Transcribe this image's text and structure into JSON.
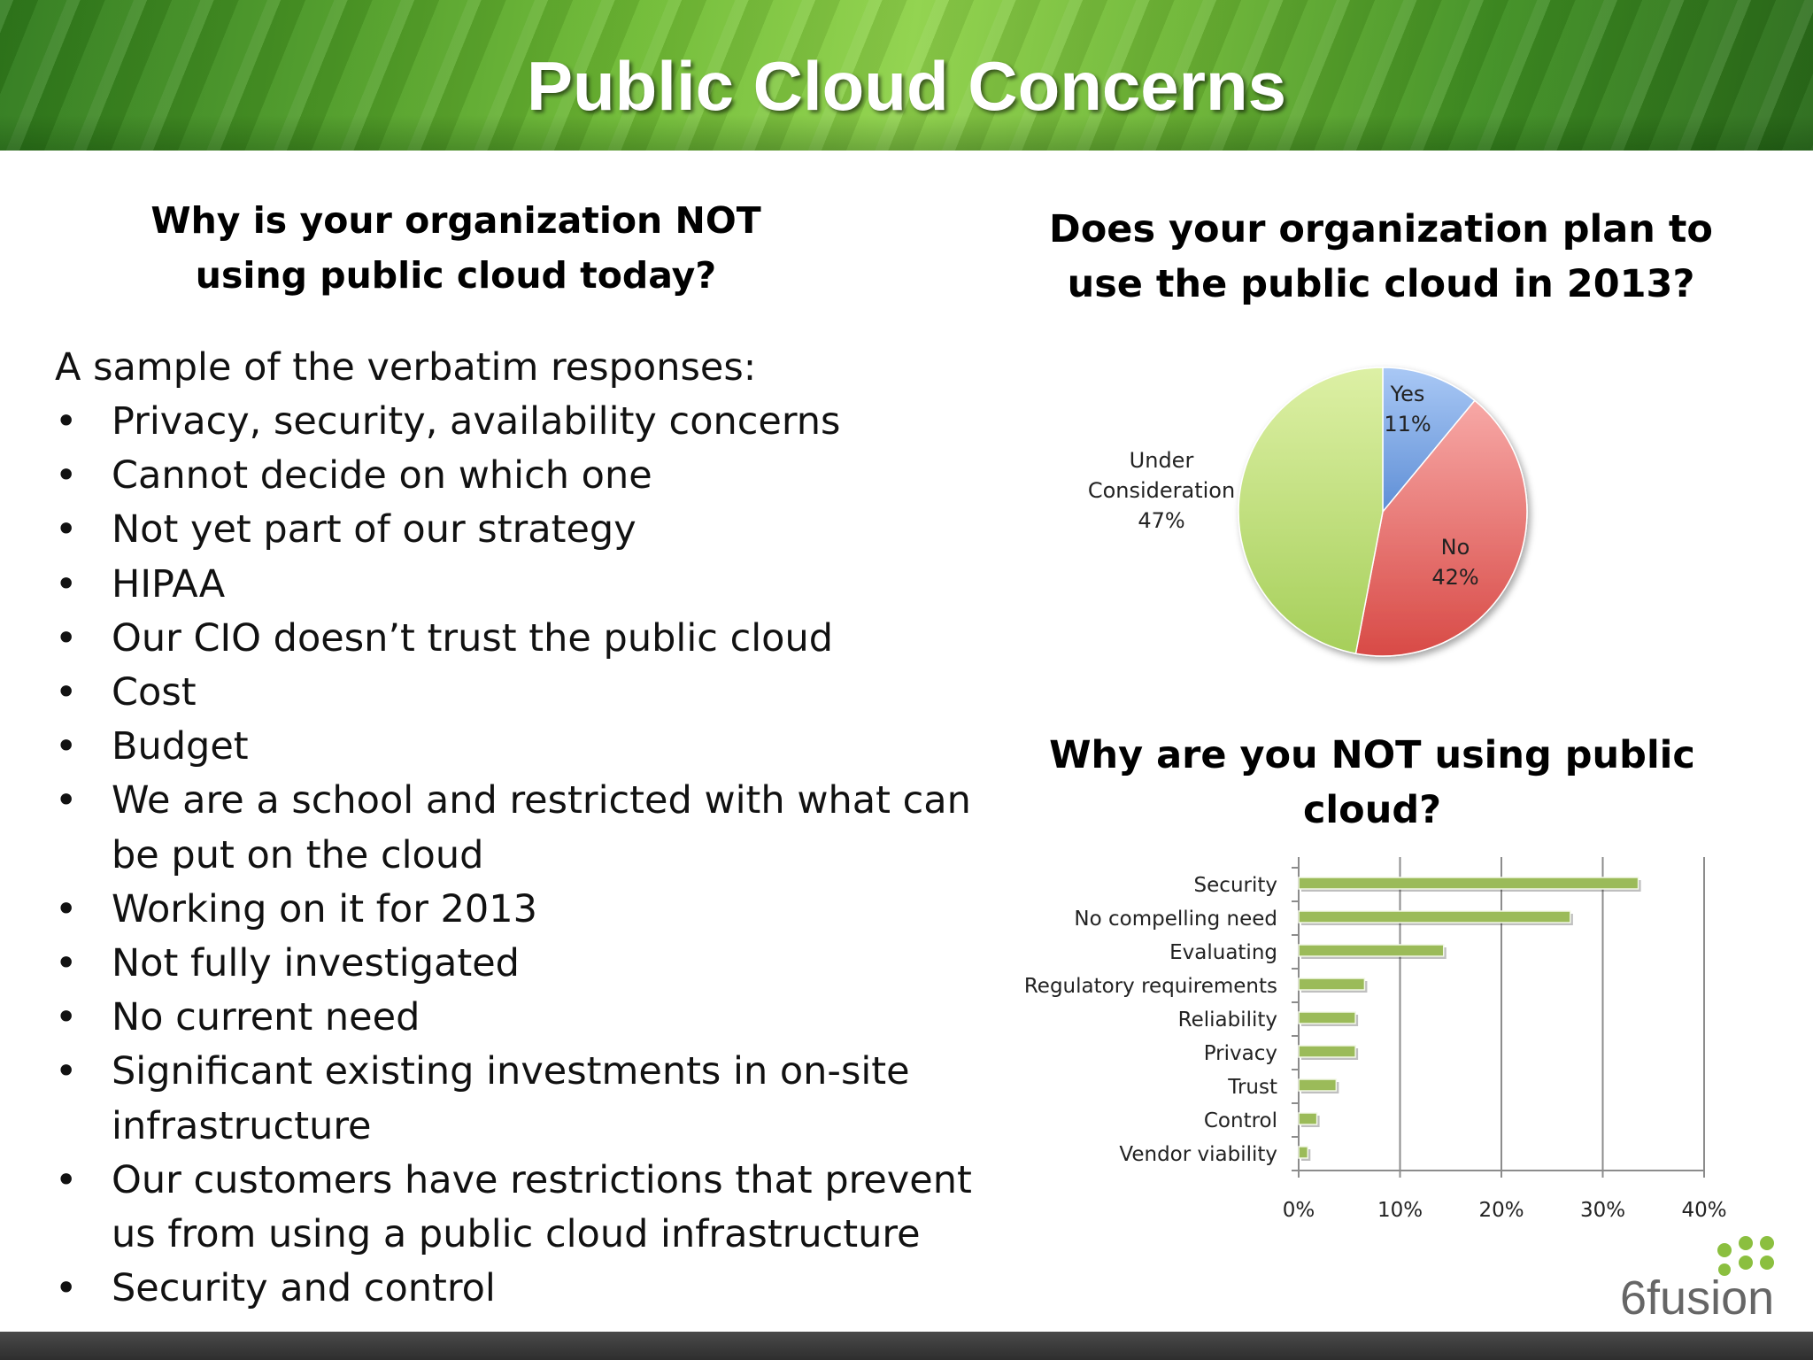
{
  "slide_title": "Public Cloud Concerns",
  "left": {
    "heading_line1": "Why is your organization NOT",
    "heading_line2": "using public cloud today?",
    "intro": "A sample of the verbatim responses:",
    "bullet_char": "•",
    "bullets": [
      "Privacy, security, availability concerns",
      "Cannot decide on which one",
      "Not yet part of our strategy",
      "HIPAA",
      "Our CIO doesn’t trust the public cloud",
      "Cost",
      "Budget",
      "We are a school and restricted with what can be put on the cloud",
      "Working on it for 2013",
      "Not fully investigated",
      "No current need",
      "Significant existing investments in on-site infrastructure",
      "Our customers have restrictions that prevent us from using a public cloud infrastructure",
      "Security and control"
    ]
  },
  "logo_text": "6fusion",
  "chart_data": [
    {
      "type": "pie",
      "title_line1": "Does your organization plan to",
      "title_line2": "use the public cloud in 2013?",
      "slices": [
        {
          "label": "Yes",
          "value": 11,
          "value_label": "11%",
          "color_light": "#a9c8f5",
          "color_dark": "#5f8fd6"
        },
        {
          "label": "No",
          "value": 42,
          "value_label": "42%",
          "color_light": "#f7a8a6",
          "color_dark": "#d84a46"
        },
        {
          "label": "Under Consideration",
          "value": 47,
          "value_label": "47%",
          "color_light": "#ddf0a5",
          "color_dark": "#a6cf5a"
        }
      ]
    },
    {
      "type": "bar",
      "orientation": "horizontal",
      "title_line1": "Why are you NOT using public",
      "title_line2": "cloud?",
      "categories": [
        "Security",
        "No compelling need",
        "Evaluating",
        "Regulatory requirements",
        "Reliability",
        "Privacy",
        "Trust",
        "Control",
        "Vendor viability"
      ],
      "values": [
        33.5,
        26.8,
        14.3,
        6.5,
        5.6,
        5.6,
        3.7,
        1.8,
        0.9
      ],
      "xlim": [
        0,
        40
      ],
      "ticks": [
        "0%",
        "10%",
        "20%",
        "30%",
        "40%"
      ],
      "grid": true,
      "bar_color": "#9bbb59"
    }
  ]
}
